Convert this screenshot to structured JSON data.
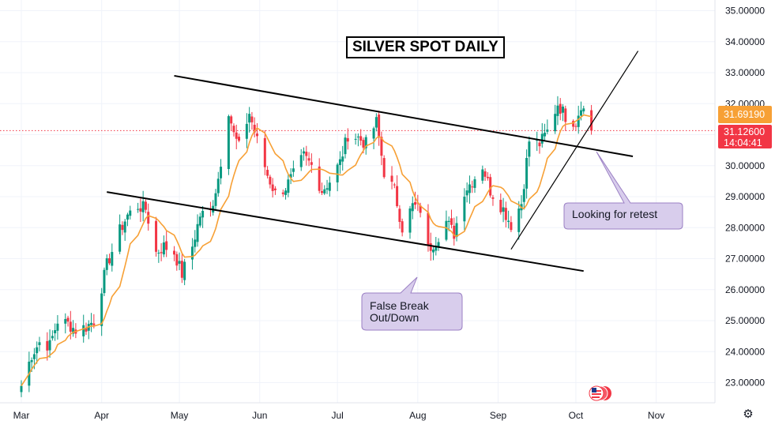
{
  "chart_data": {
    "type": "candlestick",
    "title": "SILVER SPOT DAILY",
    "x_tick_labels": [
      "Mar",
      "Apr",
      "May",
      "Jun",
      "Jul",
      "Aug",
      "Sep",
      "Oct",
      "Nov"
    ],
    "y_tick_labels": [
      "23.00000",
      "24.00000",
      "25.00000",
      "26.00000",
      "27.00000",
      "28.00000",
      "29.00000",
      "30.00000",
      "31.00000",
      "32.00000",
      "33.00000",
      "34.00000",
      "35.00000"
    ],
    "ylim": [
      22.3,
      35.3
    ],
    "grid": true,
    "close_series": [
      [
        "2024-03-01",
        22.9
      ],
      [
        "2024-03-05",
        23.9
      ],
      [
        "2024-03-08",
        24.3
      ],
      [
        "2024-03-12",
        24.2
      ],
      [
        "2024-03-15",
        25.0
      ],
      [
        "2024-03-19",
        24.9
      ],
      [
        "2024-03-22",
        24.7
      ],
      [
        "2024-03-26",
        24.8
      ],
      [
        "2024-03-29",
        25.0
      ],
      [
        "2024-04-03",
        26.8
      ],
      [
        "2024-04-08",
        27.9
      ],
      [
        "2024-04-11",
        28.4
      ],
      [
        "2024-04-15",
        28.7
      ],
      [
        "2024-04-18",
        28.6
      ],
      [
        "2024-04-22",
        27.2
      ],
      [
        "2024-04-25",
        27.4
      ],
      [
        "2024-04-29",
        27.2
      ],
      [
        "2024-05-02",
        26.5
      ],
      [
        "2024-05-06",
        27.4
      ],
      [
        "2024-05-09",
        28.4
      ],
      [
        "2024-05-13",
        28.5
      ],
      [
        "2024-05-16",
        29.6
      ],
      [
        "2024-05-20",
        31.8
      ],
      [
        "2024-05-22",
        31.0
      ],
      [
        "2024-05-24",
        30.6
      ],
      [
        "2024-05-28",
        31.7
      ],
      [
        "2024-05-31",
        30.8
      ],
      [
        "2024-06-04",
        29.7
      ],
      [
        "2024-06-07",
        29.1
      ],
      [
        "2024-06-11",
        29.3
      ],
      [
        "2024-06-14",
        29.7
      ],
      [
        "2024-06-18",
        30.3
      ],
      [
        "2024-06-21",
        30.0
      ],
      [
        "2024-06-25",
        29.2
      ],
      [
        "2024-06-28",
        29.5
      ],
      [
        "2024-07-02",
        30.1
      ],
      [
        "2024-07-05",
        31.0
      ],
      [
        "2024-07-09",
        30.9
      ],
      [
        "2024-07-12",
        30.7
      ],
      [
        "2024-07-16",
        31.4
      ],
      [
        "2024-07-19",
        29.8
      ],
      [
        "2024-07-23",
        29.2
      ],
      [
        "2024-07-26",
        28.0
      ],
      [
        "2024-07-30",
        28.7
      ],
      [
        "2024-08-02",
        28.6
      ],
      [
        "2024-08-05",
        27.3
      ],
      [
        "2024-08-08",
        27.6
      ],
      [
        "2024-08-12",
        28.2
      ],
      [
        "2024-08-15",
        27.8
      ],
      [
        "2024-08-19",
        29.2
      ],
      [
        "2024-08-22",
        29.5
      ],
      [
        "2024-08-26",
        30.0
      ],
      [
        "2024-08-29",
        29.2
      ],
      [
        "2024-09-03",
        28.6
      ],
      [
        "2024-09-06",
        28.1
      ],
      [
        "2024-09-10",
        28.8
      ],
      [
        "2024-09-13",
        30.8
      ],
      [
        "2024-09-17",
        30.7
      ],
      [
        "2024-09-20",
        31.1
      ],
      [
        "2024-09-24",
        32.0
      ],
      [
        "2024-09-27",
        31.6
      ],
      [
        "2024-10-01",
        31.4
      ],
      [
        "2024-10-03",
        32.0
      ],
      [
        "2024-10-04",
        31.8
      ],
      [
        "2024-10-07",
        31.13
      ]
    ],
    "moving_average": {
      "color": "#f7a035"
    },
    "trendlines": [
      {
        "name": "upper-channel",
        "from": [
          "2024-04-29",
          32.9
        ],
        "to": [
          "2024-10-23",
          30.3
        ]
      },
      {
        "name": "lower-channel",
        "from": [
          "2024-04-03",
          29.15
        ],
        "to": [
          "2024-10-04",
          26.6
        ]
      },
      {
        "name": "rising-support",
        "from": [
          "2024-09-06",
          27.3
        ],
        "to": [
          "2024-10-25",
          33.7
        ]
      }
    ],
    "price_labels": [
      {
        "value": "31.69190",
        "color": "#f7a035"
      },
      {
        "value": "31.12600",
        "countdown": "14:04:41",
        "color": "#f23645"
      }
    ],
    "annotations": [
      {
        "text": "False Break Out/Down",
        "lines": [
          "False Break",
          "Out/Down"
        ]
      },
      {
        "text": "Looking for retest",
        "lines": [
          "Looking for retest"
        ]
      }
    ],
    "colors": {
      "up": "#089981",
      "down": "#f23645",
      "callout_fill": "#d8cdec",
      "callout_border": "#9b80c4"
    }
  }
}
